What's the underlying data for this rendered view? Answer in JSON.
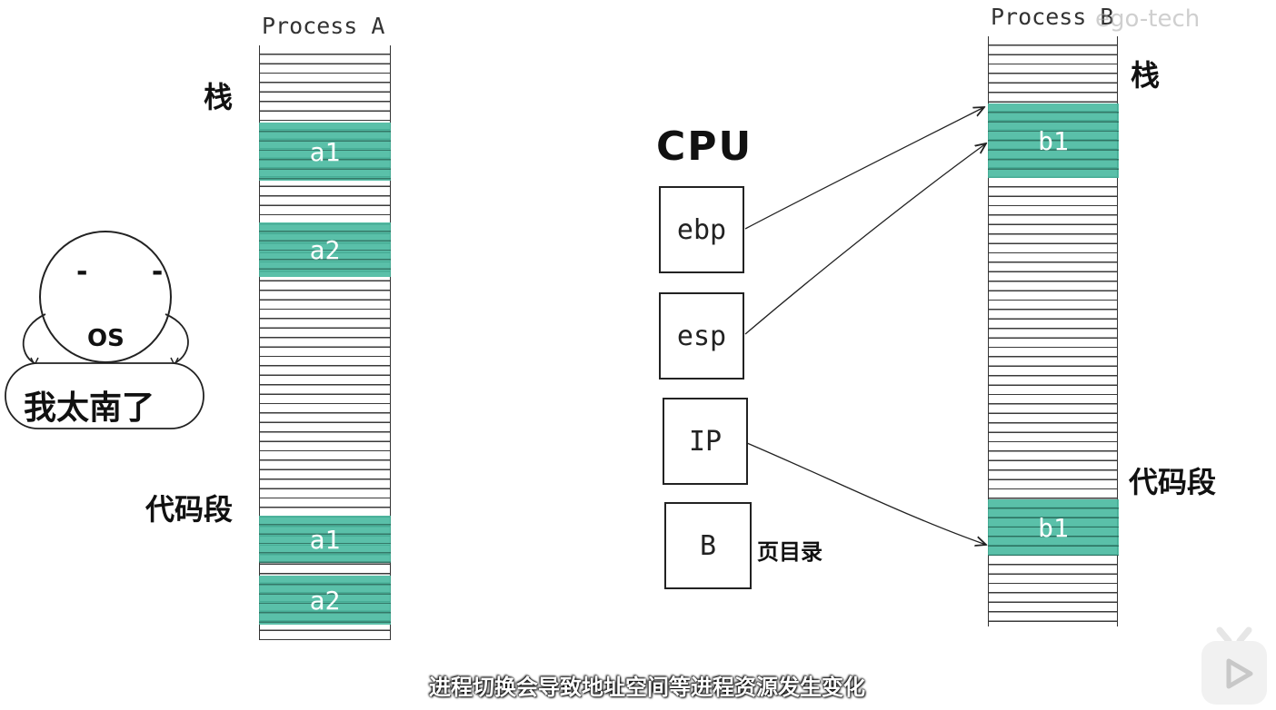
{
  "process_a": {
    "title": "Process A",
    "stack_label": "栈",
    "code_label": "代码段",
    "stack_blocks": [
      "a1",
      "a2"
    ],
    "code_blocks": [
      "a1",
      "a2"
    ]
  },
  "process_b": {
    "title": "Process B",
    "stack_label": "栈",
    "code_label": "代码段",
    "stack_block": "b1",
    "code_block": "b1"
  },
  "os": {
    "face_eyes": "- -",
    "face_label": "OS",
    "speech": "我太南了"
  },
  "cpu": {
    "title": "CPU",
    "registers": [
      "ebp",
      "esp",
      "IP",
      "B"
    ],
    "page_dir_label": "页目录"
  },
  "subtitle": "进程切换会导致地址空间等进程资源发生变化",
  "watermark": "ego-tech",
  "colors": {
    "highlight": "#48b9a0"
  }
}
